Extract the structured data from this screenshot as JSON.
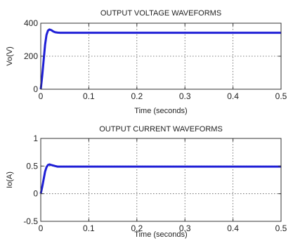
{
  "chart_data": [
    {
      "type": "line",
      "title": "OUTPUT VOLTAGE WAVEFORMS",
      "xlabel": "Time (seconds)",
      "ylabel": "Vo(V)",
      "xlim": [
        0,
        0.5
      ],
      "ylim": [
        0,
        400
      ],
      "xticks": [
        "0",
        "0.1",
        "0.2",
        "0.3",
        "0.4",
        "0.5"
      ],
      "yticks": [
        "0",
        "200",
        "400"
      ],
      "grid": true,
      "series": [
        {
          "color": "#1f1fd6",
          "x": [
            0,
            0.003,
            0.006,
            0.009,
            0.012,
            0.015,
            0.018,
            0.022,
            0.026,
            0.03,
            0.035,
            0.04,
            0.05,
            0.1,
            0.2,
            0.3,
            0.4,
            0.5
          ],
          "y": [
            0,
            80,
            175,
            270,
            330,
            355,
            362,
            358,
            350,
            345,
            343,
            342,
            342,
            342,
            342,
            342,
            342,
            342
          ]
        }
      ]
    },
    {
      "type": "line",
      "title": "OUTPUT CURRENT WAVEFORMS",
      "xlabel": "Time (seconds)",
      "ylabel": "Io(A)",
      "xlim": [
        0,
        0.5
      ],
      "ylim": [
        -0.5,
        1
      ],
      "xticks": [
        "0",
        "0.1",
        "0.2",
        "0.3",
        "0.4",
        "0.5"
      ],
      "yticks": [
        "-0.5",
        "0",
        "0.5",
        "1"
      ],
      "grid": true,
      "series": [
        {
          "color": "#1f1fd6",
          "x": [
            0,
            0.003,
            0.006,
            0.009,
            0.012,
            0.015,
            0.018,
            0.022,
            0.026,
            0.03,
            0.035,
            0.04,
            0.05,
            0.1,
            0.2,
            0.3,
            0.4,
            0.5
          ],
          "y": [
            0,
            0.12,
            0.26,
            0.4,
            0.48,
            0.52,
            0.53,
            0.52,
            0.51,
            0.5,
            0.49,
            0.49,
            0.49,
            0.49,
            0.49,
            0.49,
            0.49,
            0.49
          ]
        }
      ]
    }
  ]
}
